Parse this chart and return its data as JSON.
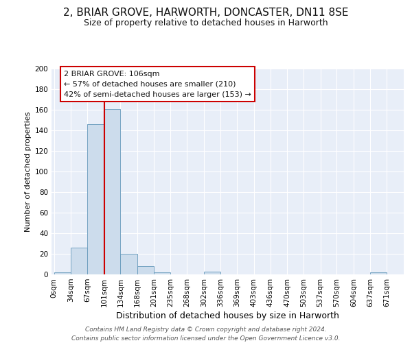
{
  "title1": "2, BRIAR GROVE, HARWORTH, DONCASTER, DN11 8SE",
  "title2": "Size of property relative to detached houses in Harworth",
  "xlabel": "Distribution of detached houses by size in Harworth",
  "ylabel": "Number of detached properties",
  "bin_labels": [
    "0sqm",
    "34sqm",
    "67sqm",
    "101sqm",
    "134sqm",
    "168sqm",
    "201sqm",
    "235sqm",
    "268sqm",
    "302sqm",
    "336sqm",
    "369sqm",
    "403sqm",
    "436sqm",
    "470sqm",
    "503sqm",
    "537sqm",
    "570sqm",
    "604sqm",
    "637sqm",
    "671sqm"
  ],
  "bin_left_edges": [
    0,
    34,
    67,
    101,
    134,
    168,
    201,
    235,
    268,
    302,
    336,
    369,
    403,
    436,
    470,
    503,
    537,
    570,
    604,
    637,
    671
  ],
  "bar_values": [
    2,
    26,
    146,
    161,
    20,
    8,
    2,
    0,
    0,
    3,
    0,
    0,
    0,
    0,
    0,
    0,
    0,
    0,
    0,
    2,
    0
  ],
  "bar_color": "#ccdcec",
  "bar_edge_color": "#6699bb",
  "red_line_x": 101,
  "annotation_line1": "2 BRIAR GROVE: 106sqm",
  "annotation_line2": "← 57% of detached houses are smaller (210)",
  "annotation_line3": "42% of semi-detached houses are larger (153) →",
  "annotation_box_facecolor": "#ffffff",
  "annotation_box_edgecolor": "#cc0000",
  "footer_text": "Contains HM Land Registry data © Crown copyright and database right 2024.\nContains public sector information licensed under the Open Government Licence v3.0.",
  "ylim_max": 200,
  "yticks": [
    0,
    20,
    40,
    60,
    80,
    100,
    120,
    140,
    160,
    180,
    200
  ],
  "bg_color": "#e8eef8",
  "grid_color": "#ffffff",
  "fig_bg": "#ffffff",
  "title1_fontsize": 11,
  "title2_fontsize": 9,
  "xlabel_fontsize": 9,
  "ylabel_fontsize": 8,
  "tick_fontsize": 7.5,
  "ann_fontsize": 8,
  "footer_fontsize": 6.5
}
